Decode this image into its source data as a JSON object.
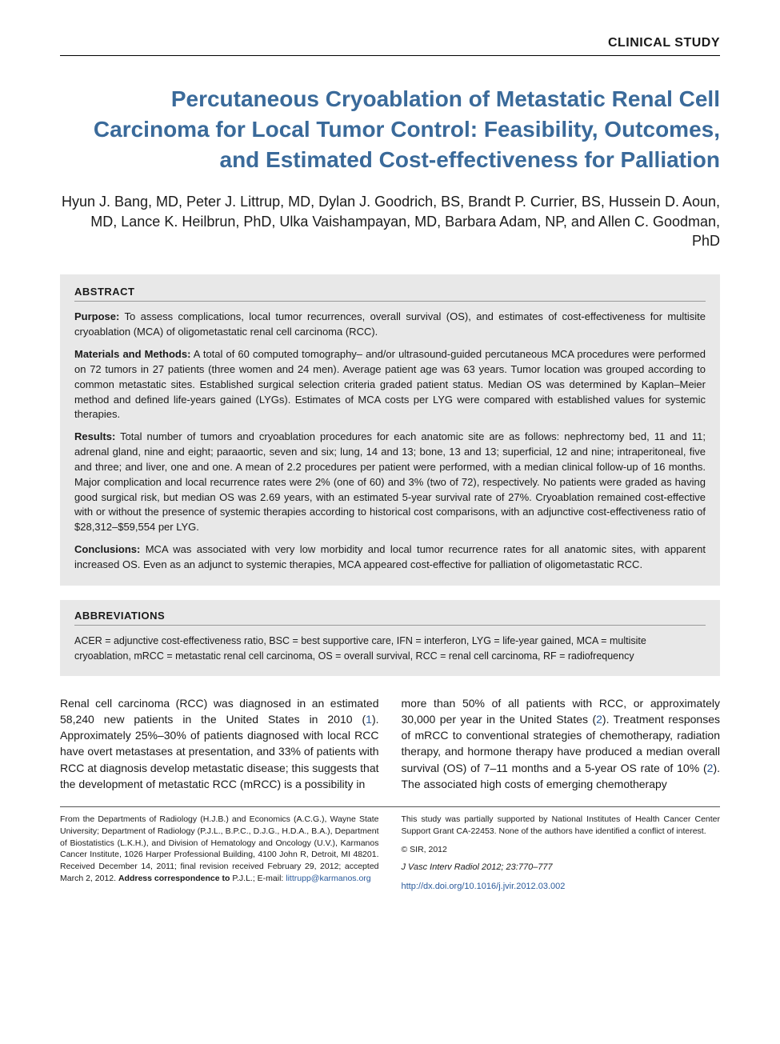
{
  "header": {
    "label": "CLINICAL STUDY"
  },
  "title": "Percutaneous Cryoablation of Metastatic Renal Cell Carcinoma for Local Tumor Control: Feasibility, Outcomes, and Estimated Cost-effectiveness for Palliation",
  "authors": "Hyun J. Bang, MD, Peter J. Littrup, MD, Dylan J. Goodrich, BS, Brandt P. Currier, BS, Hussein D. Aoun, MD, Lance K. Heilbrun, PhD, Ulka Vaishampayan, MD, Barbara Adam, NP, and Allen C. Goodman, PhD",
  "abstract": {
    "heading": "ABSTRACT",
    "sections": [
      {
        "label": "Purpose:",
        "text": " To assess complications, local tumor recurrences, overall survival (OS), and estimates of cost-effectiveness for multisite cryoablation (MCA) of oligometastatic renal cell carcinoma (RCC)."
      },
      {
        "label": "Materials and Methods:",
        "text": " A total of 60 computed tomography– and/or ultrasound-guided percutaneous MCA procedures were performed on 72 tumors in 27 patients (three women and 24 men). Average patient age was 63 years. Tumor location was grouped according to common metastatic sites. Established surgical selection criteria graded patient status. Median OS was determined by Kaplan–Meier method and defined life-years gained (LYGs). Estimates of MCA costs per LYG were compared with established values for systemic therapies."
      },
      {
        "label": "Results:",
        "text": " Total number of tumors and cryoablation procedures for each anatomic site are as follows: nephrectomy bed, 11 and 11; adrenal gland, nine and eight; paraaortic, seven and six; lung, 14 and 13; bone, 13 and 13; superficial, 12 and nine; intraperitoneal, five and three; and liver, one and one. A mean of 2.2 procedures per patient were performed, with a median clinical follow-up of 16 months. Major complication and local recurrence rates were 2% (one of 60) and 3% (two of 72), respectively. No patients were graded as having good surgical risk, but median OS was 2.69 years, with an estimated 5-year survival rate of 27%. Cryoablation remained cost-effective with or without the presence of systemic therapies according to historical cost comparisons, with an adjunctive cost-effectiveness ratio of $28,312–$59,554 per LYG."
      },
      {
        "label": "Conclusions:",
        "text": " MCA was associated with very low morbidity and local tumor recurrence rates for all anatomic sites, with apparent increased OS. Even as an adjunct to systemic therapies, MCA appeared cost-effective for palliation of oligometastatic RCC."
      }
    ]
  },
  "abbreviations": {
    "heading": "ABBREVIATIONS",
    "text": "ACER = adjunctive cost-effectiveness ratio, BSC = best supportive care, IFN = interferon, LYG = life-year gained, MCA = multisite cryoablation, mRCC = metastatic renal cell carcinoma, OS = overall survival, RCC = renal cell carcinoma, RF = radiofrequency"
  },
  "body": {
    "col1_part1": "Renal cell carcinoma (RCC) was diagnosed in an estimated 58,240 new patients in the United States in 2010 (",
    "col1_ref1": "1",
    "col1_part2": "). Approximately 25%–30% of patients diagnosed with local RCC have overt metastases at presentation, and 33% of patients with RCC at diagnosis develop metastatic disease; this suggests that the development of metastatic RCC (mRCC) is a possibility in",
    "col2_part1": "more than 50% of all patients with RCC, or approximately 30,000 per year in the United States (",
    "col2_ref2": "2",
    "col2_part2": "). Treatment responses of mRCC to conventional strategies of chemotherapy, radiation therapy, and hormone therapy have produced a median overall survival (OS) of 7–11 months and a 5-year OS rate of 10% (",
    "col2_ref3": "2",
    "col2_part3": "). The associated high costs of emerging chemotherapy"
  },
  "footer": {
    "affiliations_part1": "From the Departments of Radiology (H.J.B.) and Economics (A.C.G.), Wayne State University; Department of Radiology (P.J.L., B.P.C., D.J.G., H.D.A., B.A.), Department of Biostatistics (L.K.H.), and Division of Hematology and Oncology (U.V.), Karmanos Cancer Institute, 1026 Harper Professional Building, 4100 John R, Detroit, MI 48201. Received December 14, 2011; final revision received February 29, 2012; accepted March 2, 2012. ",
    "address_label": "Address correspondence to",
    "affiliations_part2": " P.J.L.; E-mail: ",
    "email": "littrupp@karmanos.org",
    "funding": "This study was partially supported by National Institutes of Health Cancer Center Support Grant CA-22453. None of the authors have identified a conflict of interest.",
    "copyright": "© SIR, 2012",
    "citation": "J Vasc Interv Radiol 2012; 23:770–777",
    "doi": "http://dx.doi.org/10.1016/j.jvir.2012.03.002"
  },
  "colors": {
    "title_color": "#3a6a9a",
    "link_color": "#2a5a9a",
    "box_bg": "#e8e8e8",
    "text_color": "#1a1a1a"
  }
}
